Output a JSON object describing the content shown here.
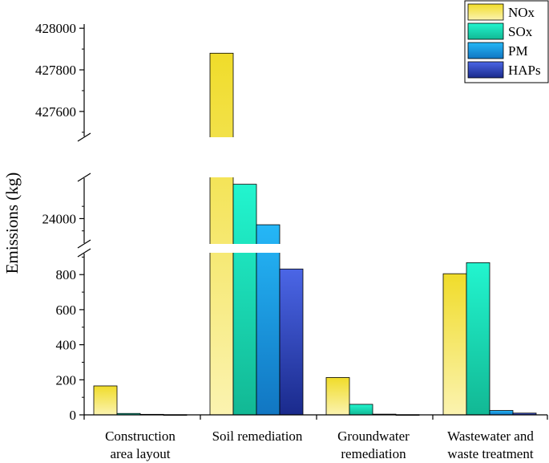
{
  "chart_data": {
    "type": "bar",
    "ylabel": "Emissions (kg)",
    "xlabel": "",
    "categories": [
      [
        "Construction",
        "area layout"
      ],
      [
        "Soil remediation"
      ],
      [
        "Groundwater",
        "remediation"
      ],
      [
        "Wastewater and",
        "waste treatment"
      ]
    ],
    "series": [
      {
        "name": "NOx",
        "color_top": "#f0dc2a",
        "color_bottom": "#fbf3b0",
        "values": [
          165,
          427880,
          213,
          805
        ]
      },
      {
        "name": "SOx",
        "color_top": "#22f5cf",
        "color_bottom": "#12b894",
        "values": [
          8,
          24280,
          60,
          868
        ]
      },
      {
        "name": "PM",
        "color_top": "#25b7f7",
        "color_bottom": "#1176c2",
        "values": [
          3,
          23950,
          4,
          25
        ]
      },
      {
        "name": "HAPs",
        "color_top": "#4b66e6",
        "color_bottom": "#1a2a8c",
        "values": [
          1,
          832,
          1,
          10
        ]
      }
    ],
    "y_axis": {
      "broken": true,
      "segments": [
        {
          "range": [
            0,
            920
          ],
          "ticks": [
            0,
            200,
            400,
            600,
            800
          ],
          "tick_labels": [
            "0",
            "200",
            "400",
            "600",
            "800"
          ]
        },
        {
          "range": [
            23800,
            24330
          ],
          "ticks": [
            24000
          ],
          "tick_labels": [
            "24000"
          ]
        },
        {
          "range": [
            427480,
            428020
          ],
          "ticks": [
            427600,
            427800,
            428000
          ],
          "tick_labels": [
            "427600",
            "427800",
            "428000"
          ]
        }
      ]
    },
    "legend": {
      "position": "top-right",
      "entries": [
        "NOx",
        "SOx",
        "PM",
        "HAPs"
      ]
    }
  }
}
